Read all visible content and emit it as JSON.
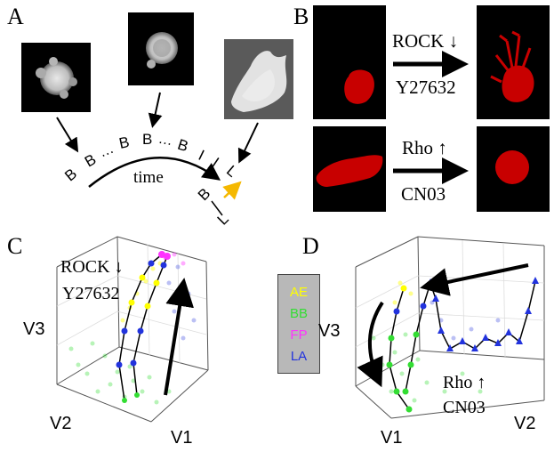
{
  "panels": {
    "a": "A",
    "b": "B",
    "c": "C",
    "d": "D"
  },
  "panel_a": {
    "sequence": [
      "B",
      "B",
      "…",
      "B",
      "B",
      "…",
      "B",
      "I",
      "I",
      "L"
    ],
    "time_label": "time",
    "transition_from": "B",
    "transition_to": "L",
    "arrow_color": "#f5b800"
  },
  "panel_b": {
    "top_upper": "ROCK ↓",
    "top_lower": "Y27632",
    "bottom_upper": "Rho ↑",
    "bottom_lower": "CN03",
    "cell_color": "#c80000"
  },
  "panel_c": {
    "annotation_upper": "ROCK ↓",
    "annotation_lower": "Y27632",
    "axis_x": "V1",
    "axis_y": "V2",
    "axis_z": "V3"
  },
  "panel_d": {
    "annotation_upper": "Rho ↑",
    "annotation_lower": "CN03",
    "axis_x": "V1",
    "axis_y": "V2",
    "axis_z": "V3"
  },
  "legend": {
    "items": [
      {
        "label": "AE",
        "color": "#ffff00"
      },
      {
        "label": "BB",
        "color": "#33dd33"
      },
      {
        "label": "FP",
        "color": "#ff33ff"
      },
      {
        "label": "LA",
        "color": "#2233dd"
      }
    ],
    "background": "#b8b8b8"
  }
}
